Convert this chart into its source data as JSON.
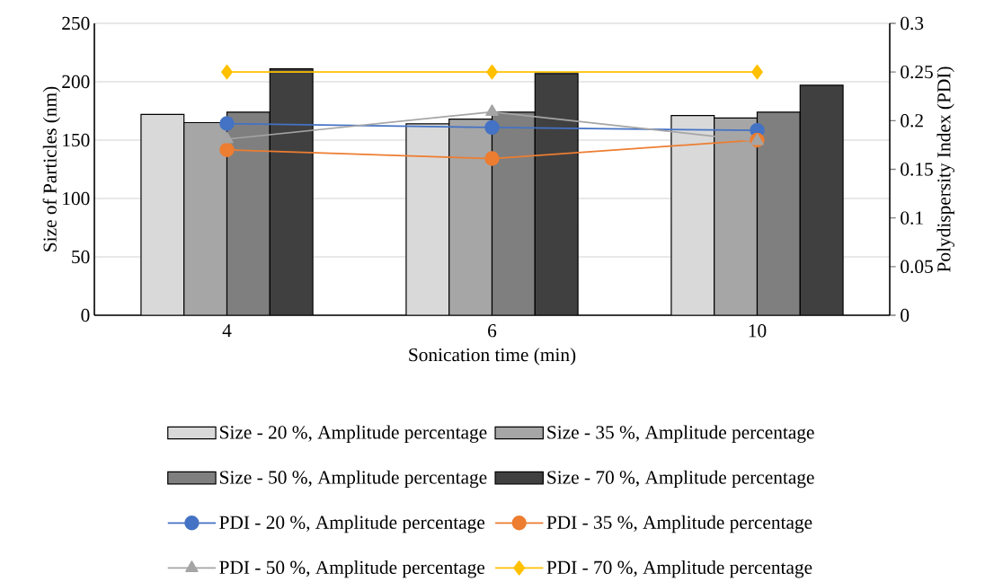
{
  "chart_data": {
    "type": "bar",
    "xlabel": "Sonication time (min)",
    "ylabel": "Size of Particles (nm)",
    "y2label": "Polydispersity Index (PDI)",
    "categories": [
      "4",
      "6",
      "10"
    ],
    "series": [
      {
        "name": "Size - 20 %, Amplitude percentage",
        "color": "#d9d9d9",
        "values": [
          172,
          164,
          171
        ]
      },
      {
        "name": "Size - 35 %, Amplitude percentage",
        "color": "#a6a6a6",
        "values": [
          165,
          168,
          169
        ]
      },
      {
        "name": "Size - 50 %, Amplitude percentage",
        "color": "#7f7f7f",
        "values": [
          174,
          174,
          174
        ]
      },
      {
        "name": "Size - 70 %, Amplitude percentage",
        "color": "#404040",
        "values": [
          211,
          207,
          197
        ]
      },
      {
        "name": "PDI - 20 %, Amplitude percentage",
        "type": "line",
        "axis": "y2",
        "marker": "circle",
        "color": "#4472c4",
        "values": [
          0.197,
          0.193,
          0.19
        ]
      },
      {
        "name": "PDI - 35 %, Amplitude percentage",
        "type": "line",
        "axis": "y2",
        "marker": "circle",
        "color": "#ed7d31",
        "values": [
          0.17,
          0.161,
          0.18
        ]
      },
      {
        "name": "PDI - 50 %, Amplitude percentage",
        "type": "line",
        "axis": "y2",
        "marker": "triangle",
        "color": "#a5a5a5",
        "values": [
          0.181,
          0.209,
          0.179
        ]
      },
      {
        "name": "PDI - 70 %, Amplitude percentage",
        "type": "line",
        "axis": "y2",
        "marker": "diamond",
        "color": "#ffc000",
        "values": [
          0.25,
          0.25,
          0.25
        ]
      }
    ],
    "ylim": [
      0,
      250
    ],
    "yticks": [
      0,
      50,
      100,
      150,
      200,
      250
    ],
    "y2lim": [
      0,
      0.3
    ],
    "y2ticks": [
      0,
      0.05,
      0.1,
      0.15,
      0.2,
      0.25,
      0.3
    ],
    "grid": "y",
    "legend": "bottom"
  }
}
